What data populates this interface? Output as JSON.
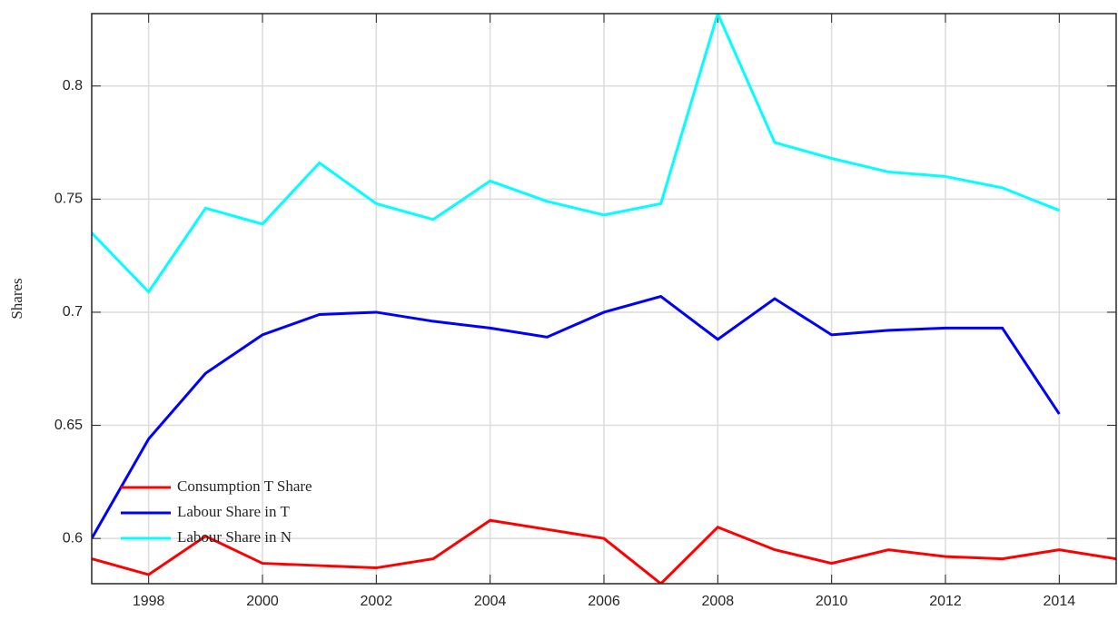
{
  "chart_data": {
    "type": "line",
    "y_label": "Shares",
    "x": [
      1997,
      1998,
      1999,
      2000,
      2001,
      2002,
      2003,
      2004,
      2005,
      2006,
      2007,
      2008,
      2009,
      2010,
      2011,
      2012,
      2013,
      2014,
      2015
    ],
    "series": [
      {
        "name": "Consumption T Share",
        "color": "#ff0000",
        "values": [
          0.591,
          0.584,
          0.601,
          0.589,
          0.588,
          0.587,
          0.591,
          0.608,
          0.604,
          0.6,
          0.58,
          0.605,
          0.595,
          0.589,
          0.595,
          0.592,
          0.591,
          0.595,
          0.591
        ]
      },
      {
        "name": "Labour Share in T",
        "color": "#0000ff",
        "values": [
          0.6,
          0.644,
          0.673,
          0.69,
          0.699,
          0.7,
          0.696,
          0.693,
          0.689,
          0.7,
          0.707,
          0.688,
          0.706,
          0.69,
          0.692,
          0.693,
          0.693,
          0.655,
          null
        ]
      },
      {
        "name": "Labour Share in N",
        "color": "#00ffff",
        "values": [
          0.735,
          0.709,
          0.746,
          0.739,
          0.766,
          0.748,
          0.741,
          0.758,
          0.749,
          0.743,
          0.748,
          0.832,
          0.775,
          0.768,
          0.762,
          0.76,
          0.755,
          0.745,
          null
        ]
      }
    ],
    "xlim": [
      1997,
      2015
    ],
    "xticks": [
      1998,
      2000,
      2002,
      2004,
      2006,
      2008,
      2010,
      2012,
      2014
    ],
    "ylim": [
      0.58,
      0.832
    ],
    "yticks": [
      0.6,
      0.65,
      0.7,
      0.75,
      0.8
    ],
    "grid": true,
    "legend": "lower-left"
  }
}
